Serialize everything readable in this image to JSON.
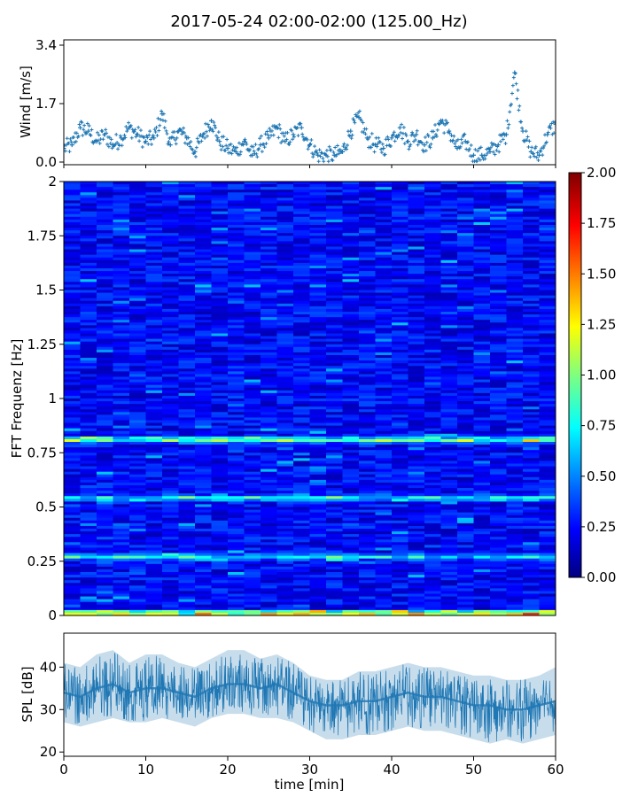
{
  "figure_title": "2017-05-24 02:00-02:00 (125.00_Hz)",
  "colors": {
    "series": "#1f77b4",
    "axis": "#000000"
  },
  "chart_data": [
    {
      "type": "scatter",
      "ylabel": "Wind [m/s]",
      "xlim": [
        0,
        60
      ],
      "ylim": [
        0.0,
        3.4
      ],
      "yticks": [
        "0.0",
        "1.7",
        "3.4"
      ],
      "marker": "+",
      "series": [
        {
          "x": [
            0,
            1,
            2,
            3,
            4,
            5,
            6,
            7,
            8,
            9,
            10,
            11,
            12,
            13,
            14,
            15,
            16,
            17,
            18,
            19,
            20,
            21,
            22,
            23,
            24,
            25,
            26,
            27,
            28,
            29,
            30,
            31,
            32,
            33,
            34,
            35,
            36,
            37,
            38,
            39,
            40,
            41,
            42,
            43,
            44,
            45,
            46,
            47,
            48,
            49,
            50,
            51,
            52,
            53,
            54,
            55,
            56,
            57,
            58,
            59,
            60
          ],
          "values": [
            0.4,
            0.5,
            1.0,
            0.9,
            0.6,
            0.8,
            0.5,
            0.7,
            1.0,
            0.8,
            0.6,
            0.7,
            1.4,
            0.5,
            0.9,
            0.7,
            0.3,
            0.8,
            1.2,
            0.6,
            0.4,
            0.3,
            0.6,
            0.2,
            0.5,
            0.7,
            1.0,
            0.6,
            0.8,
            1.0,
            0.5,
            0.2,
            0.2,
            0.2,
            0.3,
            0.9,
            1.3,
            0.7,
            0.5,
            0.4,
            0.7,
            1.0,
            0.6,
            0.8,
            0.5,
            0.7,
            1.2,
            0.9,
            0.4,
            0.6,
            0.2,
            0.2,
            0.3,
            0.5,
            0.8,
            2.6,
            0.9,
            0.3,
            0.2,
            0.8,
            1.1
          ]
        }
      ]
    },
    {
      "type": "heatmap",
      "ylabel": "FFT Frequenz [Hz]",
      "xlim": [
        0,
        60
      ],
      "ylim": [
        0,
        2
      ],
      "yticks": [
        "0",
        "0.25",
        "0.5",
        "0.75",
        "1",
        "1.25",
        "1.5",
        "1.75",
        "2"
      ],
      "colormap": "jet",
      "colorbar": {
        "range": [
          0.0,
          2.0
        ],
        "ticks": [
          "0.00",
          "0.25",
          "0.50",
          "0.75",
          "1.00",
          "1.25",
          "1.50",
          "1.75",
          "2.00"
        ]
      },
      "features": [
        {
          "freq": 0.81,
          "level": 0.9
        },
        {
          "freq": 0.54,
          "level": 0.6
        },
        {
          "freq": 0.27,
          "level": 0.55
        },
        {
          "freq": 0.01,
          "level": 1.2
        }
      ]
    },
    {
      "type": "area",
      "ylabel": "SPL [dB]",
      "xlabel": "time [min]",
      "xlim": [
        0,
        60
      ],
      "ylim": [
        19,
        48
      ],
      "yticks": [
        "20",
        "30",
        "40"
      ],
      "xticks": [
        "0",
        "10",
        "20",
        "30",
        "40",
        "50",
        "60"
      ],
      "series": [
        {
          "x": [
            0,
            2,
            4,
            6,
            8,
            10,
            12,
            14,
            16,
            18,
            20,
            22,
            24,
            26,
            28,
            30,
            32,
            34,
            36,
            38,
            40,
            42,
            44,
            46,
            48,
            50,
            52,
            54,
            56,
            58,
            60
          ],
          "mean": [
            34,
            33,
            35,
            36,
            34,
            35,
            35,
            34,
            33,
            35,
            36,
            36,
            35,
            36,
            34,
            32,
            31,
            31,
            32,
            32,
            33,
            34,
            33,
            33,
            32,
            31,
            31,
            30,
            30,
            31,
            32
          ],
          "low": [
            27,
            26,
            27,
            28,
            27,
            27,
            28,
            27,
            26,
            28,
            29,
            29,
            28,
            28,
            27,
            25,
            23,
            23,
            24,
            24,
            25,
            26,
            25,
            25,
            24,
            23,
            22,
            23,
            22,
            23,
            24
          ],
          "high": [
            41,
            40,
            43,
            44,
            41,
            43,
            43,
            41,
            40,
            42,
            44,
            44,
            42,
            43,
            41,
            38,
            37,
            37,
            39,
            39,
            40,
            41,
            40,
            40,
            39,
            38,
            38,
            37,
            37,
            38,
            40
          ]
        }
      ]
    }
  ]
}
